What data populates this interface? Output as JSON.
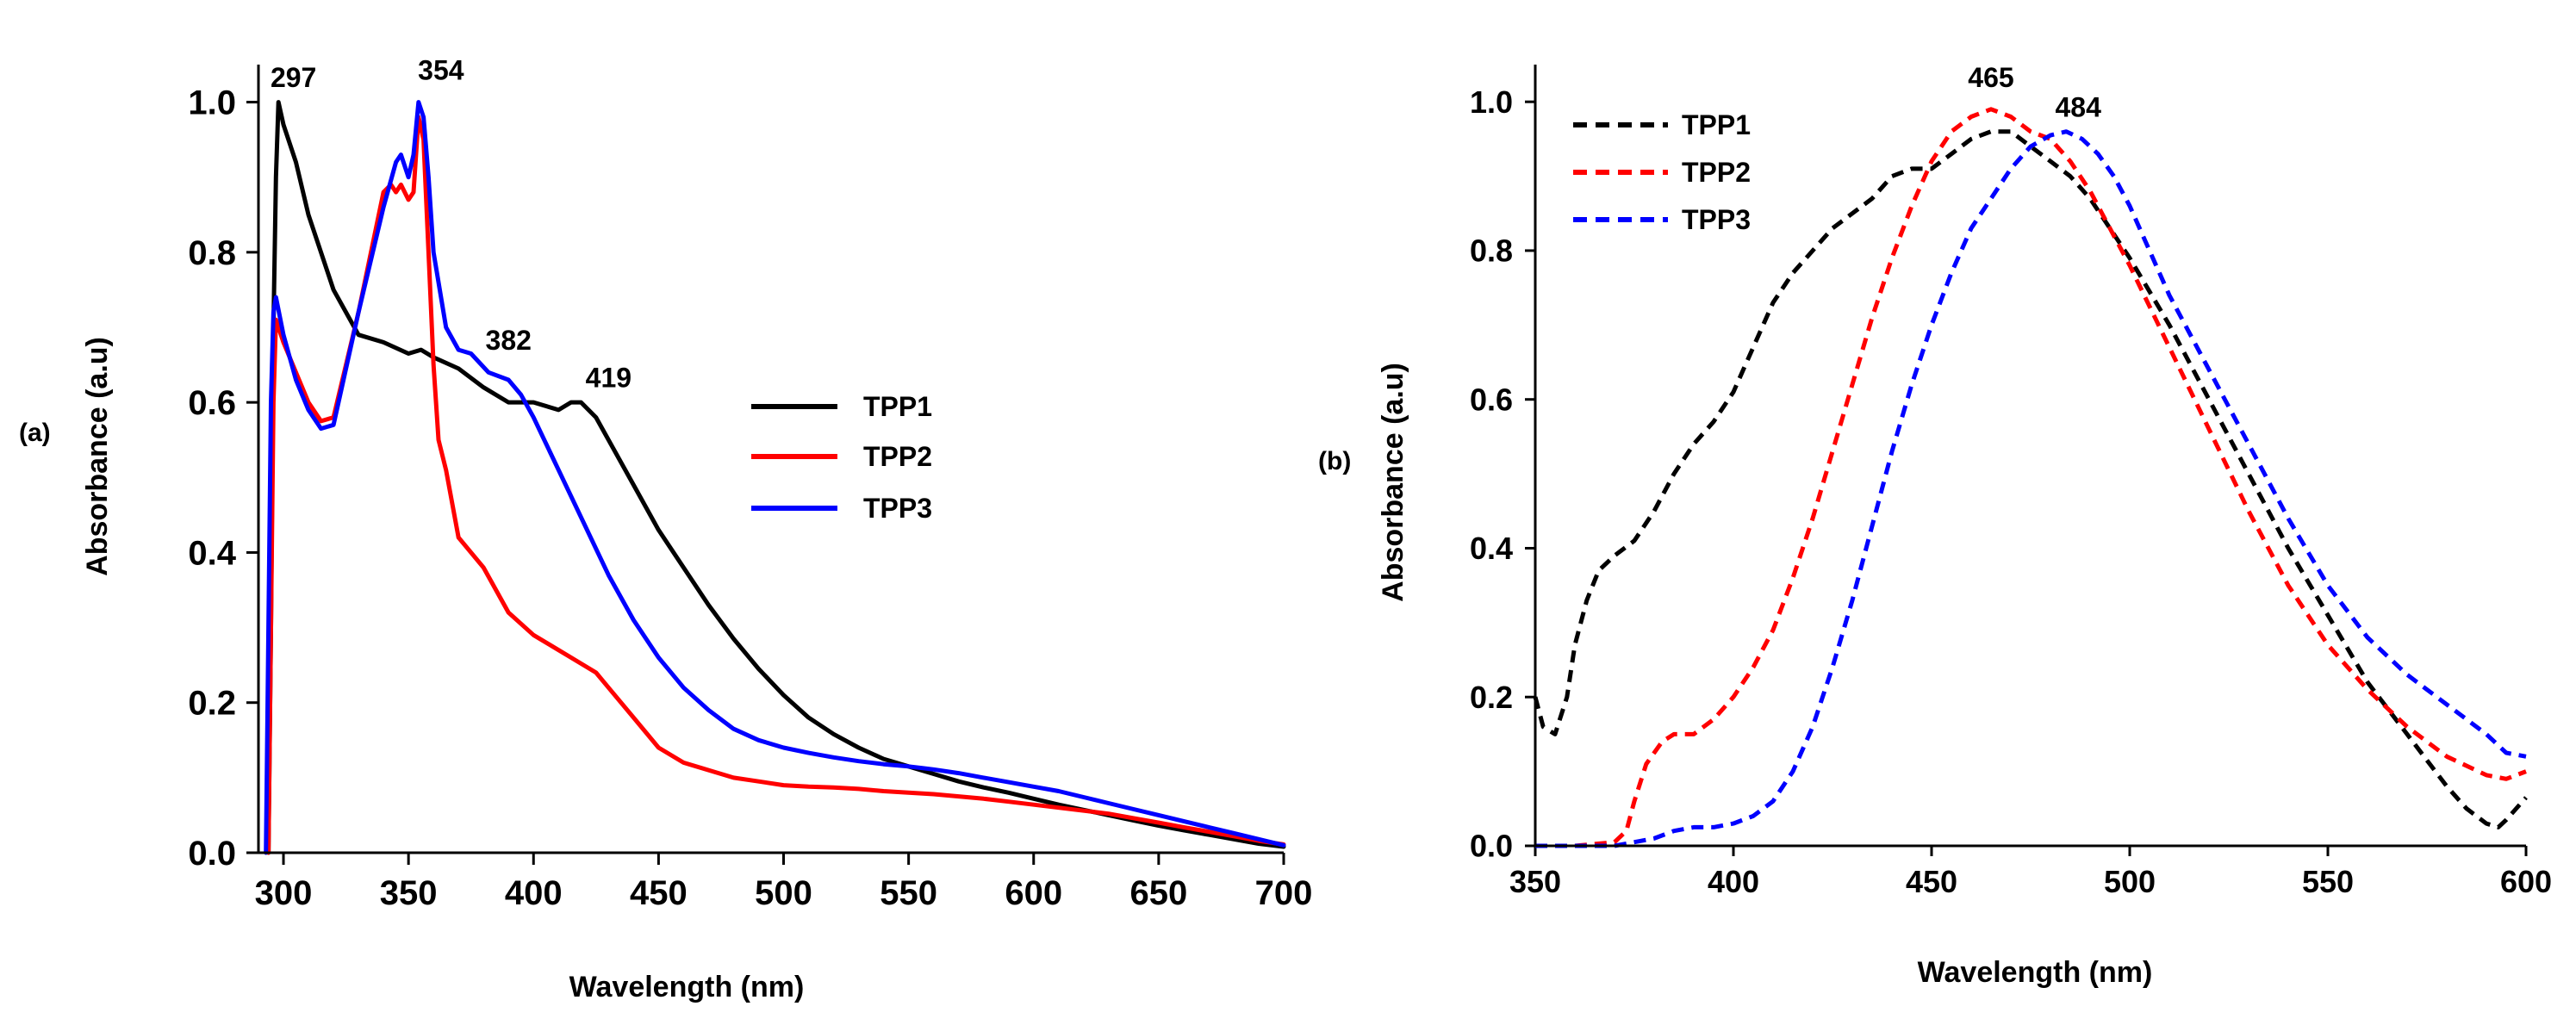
{
  "chart_data": [
    {
      "type": "line",
      "panel_label": "(a)",
      "xlabel": "Wavelength (nm)",
      "ylabel": "Absorbance (a.u)",
      "xlim": [
        290,
        700
      ],
      "ylim": [
        0,
        1.05
      ],
      "xticks": [
        300,
        350,
        400,
        450,
        500,
        550,
        600,
        650,
        700
      ],
      "yticks": [
        0.0,
        0.2,
        0.4,
        0.6,
        0.8,
        1.0
      ],
      "xtick_labels": [
        "300",
        "350",
        "400",
        "450",
        "500",
        "550",
        "600",
        "650",
        "700"
      ],
      "ytick_labels": [
        "0.0",
        "0.2",
        "0.4",
        "0.6",
        "0.8",
        "1.0"
      ],
      "grid": false,
      "legend_position": "center-right",
      "series": [
        {
          "name": "TPP1",
          "color": "#000000",
          "dash": "solid",
          "x": [
            294,
            295,
            296,
            297,
            298,
            300,
            305,
            310,
            320,
            330,
            340,
            350,
            355,
            360,
            370,
            380,
            390,
            400,
            410,
            415,
            419,
            425,
            430,
            440,
            450,
            460,
            470,
            480,
            490,
            500,
            510,
            520,
            530,
            540,
            550,
            560,
            570,
            580,
            590,
            600,
            610,
            620,
            630,
            640,
            650,
            660,
            670,
            680,
            690,
            700
          ],
          "y": [
            0.0,
            0.3,
            0.7,
            0.9,
            1.0,
            0.97,
            0.92,
            0.85,
            0.75,
            0.69,
            0.68,
            0.665,
            0.67,
            0.66,
            0.645,
            0.62,
            0.6,
            0.6,
            0.59,
            0.6,
            0.6,
            0.58,
            0.55,
            0.49,
            0.43,
            0.38,
            0.33,
            0.285,
            0.245,
            0.21,
            0.18,
            0.158,
            0.14,
            0.125,
            0.115,
            0.105,
            0.095,
            0.087,
            0.08,
            0.072,
            0.064,
            0.057,
            0.05,
            0.043,
            0.036,
            0.03,
            0.024,
            0.018,
            0.012,
            0.008
          ]
        },
        {
          "name": "TPP2",
          "color": "#ff0000",
          "dash": "solid",
          "x": [
            294,
            295,
            296,
            297,
            300,
            305,
            310,
            315,
            320,
            330,
            335,
            340,
            343,
            345,
            347,
            350,
            352,
            354,
            356,
            358,
            360,
            362,
            365,
            370,
            380,
            385,
            390,
            400,
            410,
            420,
            425,
            430,
            440,
            450,
            460,
            470,
            480,
            490,
            500,
            510,
            520,
            530,
            540,
            550,
            560,
            570,
            580,
            590,
            600,
            610,
            620,
            630,
            640,
            650,
            660,
            670,
            680,
            690,
            700
          ],
          "y": [
            0.0,
            0.3,
            0.6,
            0.71,
            0.68,
            0.64,
            0.6,
            0.575,
            0.58,
            0.72,
            0.8,
            0.88,
            0.89,
            0.88,
            0.89,
            0.87,
            0.88,
            0.98,
            0.95,
            0.8,
            0.65,
            0.55,
            0.51,
            0.42,
            0.38,
            0.35,
            0.32,
            0.29,
            0.27,
            0.25,
            0.24,
            0.22,
            0.18,
            0.14,
            0.12,
            0.11,
            0.1,
            0.095,
            0.09,
            0.088,
            0.087,
            0.085,
            0.082,
            0.08,
            0.078,
            0.075,
            0.072,
            0.068,
            0.064,
            0.06,
            0.056,
            0.052,
            0.046,
            0.04,
            0.034,
            0.028,
            0.022,
            0.016,
            0.011
          ]
        },
        {
          "name": "TPP3",
          "color": "#0000ff",
          "dash": "solid",
          "x": [
            293,
            294,
            295,
            296,
            297,
            300,
            305,
            310,
            315,
            320,
            330,
            340,
            345,
            347,
            350,
            352,
            354,
            356,
            358,
            360,
            365,
            370,
            375,
            382,
            390,
            395,
            400,
            410,
            420,
            430,
            440,
            450,
            460,
            470,
            480,
            490,
            500,
            510,
            520,
            530,
            540,
            550,
            560,
            570,
            580,
            590,
            600,
            610,
            620,
            630,
            640,
            650,
            660,
            670,
            680,
            690,
            700
          ],
          "y": [
            0.0,
            0.3,
            0.6,
            0.72,
            0.74,
            0.69,
            0.63,
            0.59,
            0.565,
            0.57,
            0.72,
            0.86,
            0.92,
            0.93,
            0.9,
            0.93,
            1.0,
            0.98,
            0.9,
            0.8,
            0.7,
            0.67,
            0.665,
            0.64,
            0.63,
            0.61,
            0.58,
            0.51,
            0.44,
            0.37,
            0.31,
            0.26,
            0.22,
            0.19,
            0.165,
            0.15,
            0.14,
            0.133,
            0.127,
            0.122,
            0.118,
            0.115,
            0.111,
            0.106,
            0.1,
            0.094,
            0.088,
            0.082,
            0.074,
            0.066,
            0.058,
            0.05,
            0.042,
            0.034,
            0.026,
            0.018,
            0.01
          ]
        }
      ],
      "annotations": [
        {
          "text": "297",
          "x": 304,
          "y": 1.02
        },
        {
          "text": "354",
          "x": 363,
          "y": 1.03
        },
        {
          "text": "382",
          "x": 390,
          "y": 0.67
        },
        {
          "text": "419",
          "x": 430,
          "y": 0.62
        }
      ]
    },
    {
      "type": "line",
      "panel_label": "(b)",
      "xlabel": "Wavelength (nm)",
      "ylabel": "Absorbance (a.u)",
      "xlim": [
        350,
        600
      ],
      "ylim": [
        0,
        1.05
      ],
      "xticks": [
        350,
        400,
        450,
        500,
        550,
        600
      ],
      "yticks": [
        0.0,
        0.2,
        0.4,
        0.6,
        0.8,
        1.0
      ],
      "xtick_labels": [
        "350",
        "400",
        "450",
        "500",
        "550",
        "600"
      ],
      "ytick_labels": [
        "0.0",
        "0.2",
        "0.4",
        "0.6",
        "0.8",
        "1.0"
      ],
      "grid": false,
      "legend_position": "top-left",
      "series": [
        {
          "name": "TPP1",
          "color": "#000000",
          "dash": "dashed",
          "x": [
            350,
            352,
            355,
            358,
            360,
            363,
            366,
            370,
            375,
            380,
            385,
            390,
            395,
            400,
            405,
            410,
            415,
            420,
            425,
            430,
            435,
            440,
            445,
            450,
            455,
            460,
            465,
            470,
            475,
            480,
            485,
            490,
            495,
            500,
            510,
            520,
            530,
            540,
            550,
            560,
            570,
            580,
            585,
            590,
            593,
            595,
            600
          ],
          "y": [
            0.2,
            0.16,
            0.15,
            0.2,
            0.27,
            0.33,
            0.37,
            0.39,
            0.41,
            0.45,
            0.5,
            0.54,
            0.57,
            0.61,
            0.67,
            0.73,
            0.77,
            0.8,
            0.83,
            0.85,
            0.87,
            0.9,
            0.91,
            0.91,
            0.93,
            0.95,
            0.96,
            0.96,
            0.94,
            0.92,
            0.9,
            0.87,
            0.83,
            0.79,
            0.7,
            0.6,
            0.5,
            0.4,
            0.31,
            0.22,
            0.15,
            0.08,
            0.05,
            0.03,
            0.025,
            0.035,
            0.065
          ]
        },
        {
          "name": "TPP2",
          "color": "#ff0000",
          "dash": "dashed",
          "x": [
            350,
            360,
            370,
            373,
            375,
            378,
            382,
            385,
            390,
            395,
            400,
            405,
            410,
            415,
            420,
            425,
            430,
            435,
            440,
            445,
            450,
            455,
            460,
            465,
            470,
            475,
            480,
            485,
            490,
            495,
            500,
            510,
            520,
            530,
            540,
            550,
            560,
            570,
            580,
            590,
            595,
            600
          ],
          "y": [
            0.0,
            0.0,
            0.005,
            0.02,
            0.06,
            0.11,
            0.14,
            0.15,
            0.15,
            0.17,
            0.2,
            0.24,
            0.29,
            0.36,
            0.44,
            0.53,
            0.62,
            0.71,
            0.79,
            0.86,
            0.92,
            0.96,
            0.98,
            0.99,
            0.98,
            0.96,
            0.95,
            0.92,
            0.88,
            0.83,
            0.78,
            0.67,
            0.56,
            0.45,
            0.35,
            0.27,
            0.21,
            0.16,
            0.12,
            0.095,
            0.09,
            0.1
          ]
        },
        {
          "name": "TPP3",
          "color": "#0000ff",
          "dash": "dashed",
          "x": [
            350,
            360,
            370,
            375,
            380,
            385,
            390,
            395,
            400,
            405,
            410,
            415,
            420,
            425,
            430,
            435,
            440,
            445,
            450,
            455,
            460,
            465,
            470,
            475,
            480,
            484,
            488,
            492,
            496,
            500,
            505,
            510,
            520,
            530,
            540,
            550,
            560,
            570,
            580,
            590,
            595,
            600
          ],
          "y": [
            0.0,
            0.0,
            0.0,
            0.005,
            0.01,
            0.02,
            0.025,
            0.025,
            0.03,
            0.04,
            0.06,
            0.1,
            0.16,
            0.24,
            0.33,
            0.43,
            0.53,
            0.62,
            0.7,
            0.77,
            0.83,
            0.87,
            0.91,
            0.94,
            0.955,
            0.96,
            0.95,
            0.93,
            0.9,
            0.86,
            0.8,
            0.74,
            0.64,
            0.54,
            0.44,
            0.35,
            0.28,
            0.23,
            0.19,
            0.15,
            0.125,
            0.12
          ]
        }
      ],
      "annotations": [
        {
          "text": "465",
          "x": 465,
          "y": 1.02
        },
        {
          "text": "484",
          "x": 487,
          "y": 0.98
        }
      ]
    }
  ]
}
